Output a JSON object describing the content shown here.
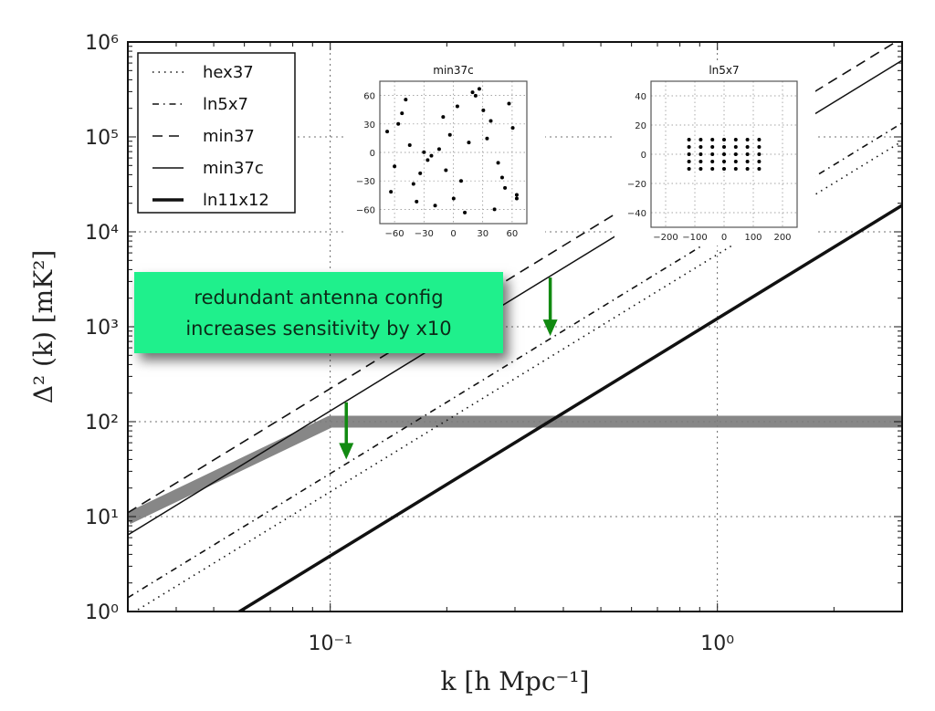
{
  "chart_data": {
    "type": "line",
    "xscale": "log",
    "yscale": "log",
    "xlim": [
      0.03,
      3
    ],
    "ylim": [
      1,
      1000000
    ],
    "grid": true,
    "xlabel": "k [h Mpc⁻¹]",
    "ylabel": "Δ² (k) [mK²]",
    "x_ticks": [
      0.1,
      1
    ],
    "x_tick_labels": [
      "10⁻¹",
      "10⁰"
    ],
    "y_ticks": [
      1,
      10,
      100,
      1000,
      10000,
      100000,
      1000000
    ],
    "y_tick_labels": [
      "10⁰",
      "10¹",
      "10²",
      "10³",
      "10⁴",
      "10⁵",
      "10⁶"
    ],
    "legend_position": "top-left",
    "series": [
      {
        "name": "hex37",
        "style": "dotted",
        "x": [
          0.03,
          3
        ],
        "y": [
          0.9,
          90000
        ]
      },
      {
        "name": "ln5x7",
        "style": "dash-dot",
        "x": [
          0.03,
          3
        ],
        "y": [
          1.4,
          140000
        ]
      },
      {
        "name": "min37",
        "style": "dashed",
        "x": [
          0.03,
          3
        ],
        "y": [
          11,
          1100000
        ]
      },
      {
        "name": "min37c",
        "style": "solid",
        "x": [
          0.03,
          3
        ],
        "y": [
          6.4,
          640000
        ]
      },
      {
        "name": "ln11x12",
        "style": "solid-thick",
        "x": [
          0.03,
          3
        ],
        "y": [
          0.19,
          19000
        ]
      }
    ],
    "band": {
      "x": [
        0.03,
        0.1,
        3
      ],
      "y": [
        9.5,
        100,
        100
      ],
      "color": "#7a7a7a"
    },
    "annotation": {
      "lines": [
        "redundant antenna config",
        "increases sensitivity by x10"
      ],
      "background": "#1ff08c",
      "arrow_color": "#118a11",
      "arrows": [
        {
          "x": 0.11,
          "y_from": 160,
          "y_to": 40
        },
        {
          "x": 0.37,
          "y_from": 3300,
          "y_to": 800
        }
      ]
    },
    "insets": [
      {
        "title": "min37c",
        "xlim": [
          -75,
          75
        ],
        "ylim": [
          -75,
          75
        ],
        "x_ticks": [
          -60,
          -30,
          0,
          30,
          60
        ],
        "y_ticks": [
          60,
          30,
          0,
          -30,
          -60
        ],
        "x_tick_labels": [
          "−60",
          "−30",
          "0",
          "30",
          "60"
        ],
        "y_tick_labels": [
          "60",
          "30",
          "0",
          "−30",
          "−60"
        ],
        "points": [
          [
            -67.5,
            22
          ],
          [
            -48.6,
            55.6
          ],
          [
            -52.4,
            41.2
          ],
          [
            -56.2,
            30
          ],
          [
            -44.5,
            7.7
          ],
          [
            -60,
            -14.7
          ],
          [
            -63.7,
            -41.5
          ],
          [
            -37.5,
            -51.8
          ],
          [
            -40.7,
            -33.2
          ],
          [
            -33.8,
            -22
          ],
          [
            -30,
            0.3
          ],
          [
            -26.2,
            -8
          ],
          [
            -22.4,
            -3.5
          ],
          [
            -14.5,
            3.5
          ],
          [
            -10.4,
            37.4
          ],
          [
            -3.5,
            18.5
          ],
          [
            -7.6,
            -18.8
          ],
          [
            -18.6,
            -56
          ],
          [
            0.3,
            -48.6
          ],
          [
            4.1,
            48.6
          ],
          [
            7.9,
            -30
          ],
          [
            11.7,
            -63.3
          ],
          [
            15.8,
            10.5
          ],
          [
            19.6,
            63.3
          ],
          [
            22.7,
            59.7
          ],
          [
            26.5,
            67
          ],
          [
            30.6,
            44.4
          ],
          [
            38.2,
            33.2
          ],
          [
            34.4,
            14.7
          ],
          [
            45.7,
            -10.9
          ],
          [
            49.8,
            -26.5
          ],
          [
            52.7,
            -37.4
          ],
          [
            42,
            -60
          ],
          [
            56.8,
            51.4
          ],
          [
            60.6,
            25.9
          ],
          [
            64.7,
            -44.7
          ],
          [
            64.7,
            -48.6
          ]
        ]
      },
      {
        "title": "ln5x7",
        "xlim": [
          -250,
          250
        ],
        "ylim": [
          -50,
          50
        ],
        "x_ticks": [
          -200,
          -100,
          0,
          100,
          200
        ],
        "y_ticks": [
          40,
          20,
          0,
          -20,
          -40
        ],
        "x_tick_labels": [
          "−200",
          "−100",
          "0",
          "100",
          "200"
        ],
        "y_tick_labels": [
          "40",
          "20",
          "0",
          "−20",
          "−40"
        ],
        "grid_x": [
          -120,
          -80,
          -40,
          0,
          40,
          80,
          120
        ],
        "grid_y": [
          10,
          5,
          0,
          -5,
          -10
        ]
      }
    ]
  }
}
